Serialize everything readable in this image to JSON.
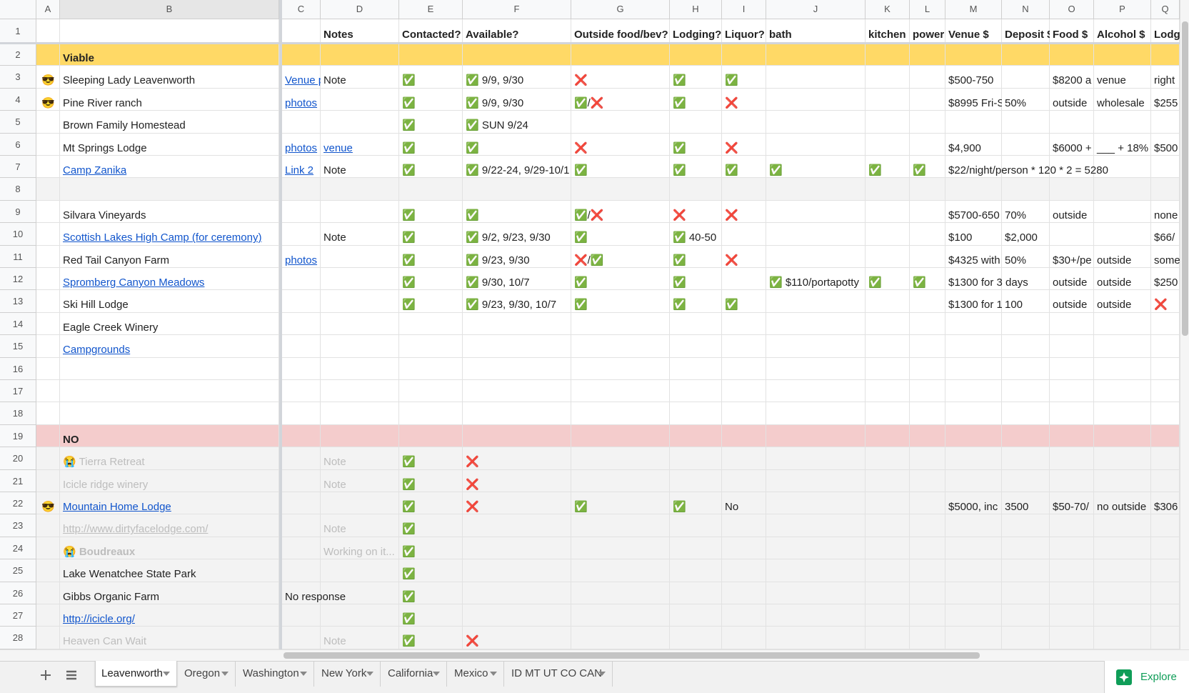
{
  "columns": [
    "A",
    "B",
    "C",
    "D",
    "E",
    "F",
    "G",
    "H",
    "I",
    "J",
    "K",
    "L",
    "M",
    "N",
    "O",
    "P",
    "Q"
  ],
  "rows": [
    {
      "num": 1,
      "cells": {
        "D": "Notes",
        "E": "Contacted?",
        "F": "Available?",
        "G": "Outside food/bev?",
        "H": "Lodging?",
        "I": "Liquor?",
        "J": "bath",
        "K": "kitchen",
        "L": "power",
        "M": "Venue $",
        "N": "Deposit $",
        "O": "Food $",
        "P": "Alcohol $",
        "Q": "Lodg"
      }
    },
    {
      "num": 2,
      "cells": {
        "B": "Viable"
      }
    },
    {
      "num": 3,
      "cells": {
        "A": "😎",
        "B": "Sleeping Lady Leavenworth",
        "C": "Venue p",
        "D": "Note",
        "E": "✅",
        "F": "✅ 9/9, 9/30",
        "G": "❌",
        "H": "✅",
        "I": "✅",
        "M": "$500-750",
        "O": "$8200 a",
        "P": "venue",
        "Q": "right"
      }
    },
    {
      "num": 4,
      "cells": {
        "A": "😎",
        "B": "Pine River ranch",
        "C": "photos",
        "E": "✅",
        "F": "✅ 9/9, 9/30",
        "G": "✅/❌",
        "H": "✅",
        "I": "❌",
        "M": "$8995 Fri-S",
        "N": "50%",
        "O": "outside",
        "P": "wholesale",
        "Q": "$255"
      }
    },
    {
      "num": 5,
      "cells": {
        "B": "Brown Family Homestead",
        "E": "✅",
        "F": "✅ SUN 9/24"
      }
    },
    {
      "num": 6,
      "cells": {
        "B": "Mt Springs Lodge",
        "C": "photos",
        "D": "venue",
        "E": "✅",
        "F": "✅",
        "G": "❌",
        "H": "✅",
        "I": "❌",
        "M": "$4,900",
        "O": "$6000 +",
        "P": "___ + 18%",
        "Q": "$500"
      }
    },
    {
      "num": 7,
      "cells": {
        "B": "Camp Zanika",
        "C": "Link 2",
        "D": "Note",
        "E": "✅",
        "F": "✅ 9/22-24, 9/29-10/1",
        "G": "✅",
        "H": "✅",
        "I": "✅",
        "J": "✅",
        "K": "✅",
        "L": "✅",
        "M": "$22/night/person * 120 * 2 = 5280"
      }
    },
    {
      "num": 8,
      "cells": {}
    },
    {
      "num": 9,
      "cells": {
        "B": "Silvara Vineyards",
        "E": "✅",
        "F": "✅",
        "G": "✅/❌",
        "H": "❌",
        "I": "❌",
        "M": "$5700-650",
        "N": "70%",
        "O": "outside",
        "Q": "none"
      }
    },
    {
      "num": 10,
      "cells": {
        "B": "Scottish Lakes High Camp (for ceremony)",
        "D": "Note",
        "E": "✅",
        "F": "✅ 9/2, 9/23, 9/30",
        "G": "✅",
        "H": "✅ 40-50",
        "M": "$100",
        "N": "$2,000",
        "Q": "$66/"
      }
    },
    {
      "num": 11,
      "cells": {
        "B": "Red Tail Canyon Farm",
        "C": "photos",
        "E": "✅",
        "F": "✅ 9/23, 9/30",
        "G": "❌/✅",
        "H": "✅",
        "I": "❌",
        "M": "$4325 with",
        "N": "50%",
        "O": "$30+/pe",
        "P": "outside",
        "Q": "some"
      }
    },
    {
      "num": 12,
      "cells": {
        "B": "Spromberg Canyon Meadows",
        "E": "✅",
        "F": "✅ 9/30, 10/7",
        "G": "✅",
        "H": "✅",
        "J": "✅ $110/portapotty",
        "K": "✅",
        "L": "✅",
        "M": "$1300 for 3 days",
        "O": "outside",
        "P": "outside",
        "Q": "$250"
      }
    },
    {
      "num": 13,
      "cells": {
        "B": "Ski Hill Lodge",
        "E": "✅",
        "F": "✅ 9/23, 9/30, 10/7",
        "G": "✅",
        "H": "✅",
        "I": "✅",
        "M": "$1300 for 1",
        "N": "100",
        "O": "outside",
        "P": "outside",
        "Q": "❌"
      }
    },
    {
      "num": 14,
      "cells": {
        "B": "Eagle Creek Winery"
      }
    },
    {
      "num": 15,
      "cells": {
        "B": "Campgrounds"
      }
    },
    {
      "num": 16,
      "cells": {}
    },
    {
      "num": 17,
      "cells": {}
    },
    {
      "num": 18,
      "cells": {}
    },
    {
      "num": 19,
      "cells": {
        "B": "NO"
      }
    },
    {
      "num": 20,
      "cells": {
        "B": "😭 Tierra Retreat",
        "D": "Note",
        "E": "✅",
        "F": "❌"
      }
    },
    {
      "num": 21,
      "cells": {
        "B": "Icicle ridge winery",
        "D": "Note",
        "E": "✅",
        "F": "❌"
      }
    },
    {
      "num": 22,
      "cells": {
        "A": "😎",
        "B": "Mountain Home Lodge",
        "E": "✅",
        "F": "❌",
        "G": "✅",
        "H": "✅",
        "I": "No",
        "M": "$5000, inc",
        "N": "3500",
        "O": "$50-70/",
        "P": "no outside",
        "Q": "$306"
      }
    },
    {
      "num": 23,
      "cells": {
        "B": "http://www.dirtyfacelodge.com/",
        "D": "Note",
        "E": "✅"
      }
    },
    {
      "num": 24,
      "cells": {
        "B": "😭 Boudreaux",
        "D": "Working on it...",
        "E": "✅"
      }
    },
    {
      "num": 25,
      "cells": {
        "B": "Lake Wenatchee State Park",
        "E": "✅"
      }
    },
    {
      "num": 26,
      "cells": {
        "B": "Gibbs Organic Farm",
        "C": "No response",
        "E": "✅"
      }
    },
    {
      "num": 27,
      "cells": {
        "B": "http://icicle.org/",
        "E": "✅"
      }
    },
    {
      "num": 28,
      "cells": {
        "B": "Heaven Can Wait",
        "D": "Note",
        "E": "✅",
        "F": "❌"
      }
    }
  ],
  "tabs": [
    "Leavenworth",
    "Oregon",
    "Washington",
    "New York",
    "California",
    "Mexico",
    "ID MT UT CO CAN"
  ],
  "explore": "Explore"
}
